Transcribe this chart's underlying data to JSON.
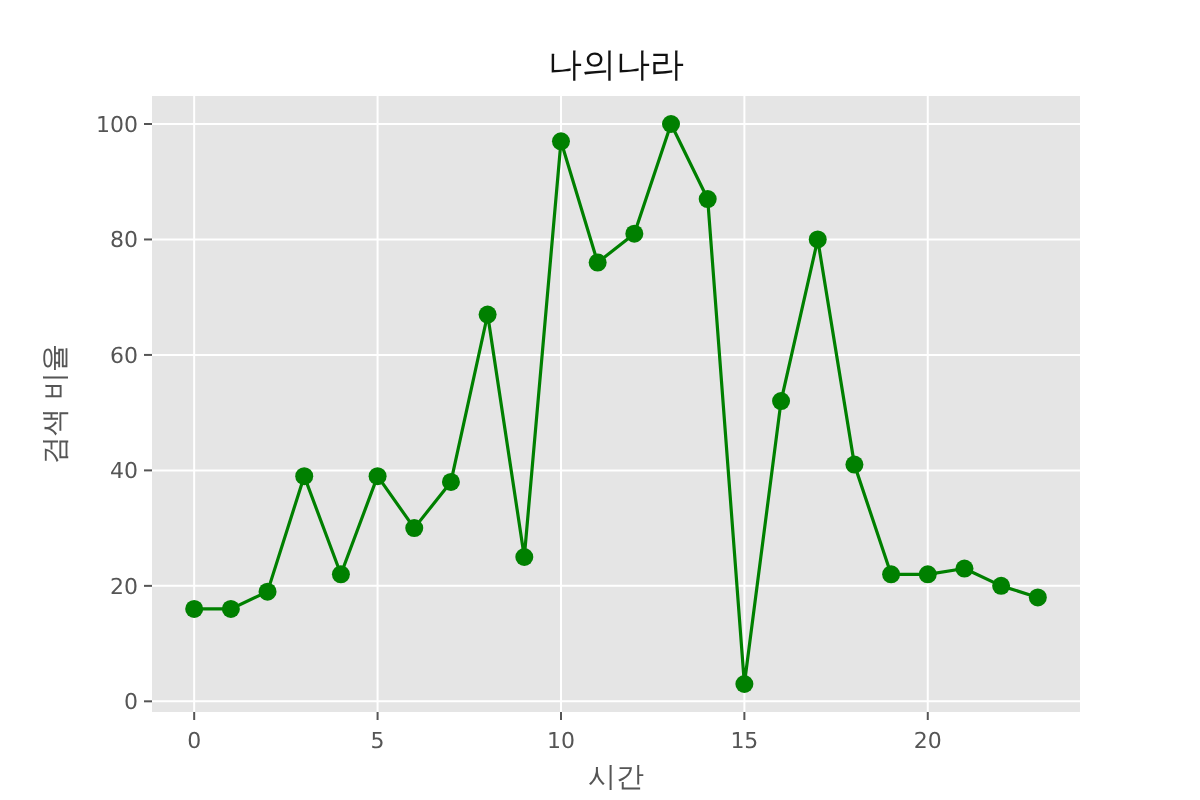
{
  "chart_data": {
    "type": "line",
    "title": "나의나라",
    "xlabel": "시간",
    "ylabel": "검색 비율",
    "x": [
      0,
      1,
      2,
      3,
      4,
      5,
      6,
      7,
      8,
      9,
      10,
      11,
      12,
      13,
      14,
      15,
      16,
      17,
      18,
      19,
      20,
      21,
      22,
      23
    ],
    "series": [
      {
        "color": "#008000",
        "values": [
          16,
          16,
          19,
          39,
          22,
          39,
          30,
          38,
          67,
          25,
          97,
          76,
          81,
          100,
          87,
          3,
          52,
          80,
          41,
          22,
          22,
          23,
          20,
          18
        ]
      }
    ],
    "xlim": [
      -1.15,
      24.15
    ],
    "ylim": [
      -1.85,
      104.85
    ],
    "xticks": [
      0,
      5,
      10,
      15,
      20
    ],
    "yticks": [
      0,
      20,
      40,
      60,
      80,
      100
    ],
    "grid": true,
    "marker": "circle",
    "line_style": "solid"
  }
}
